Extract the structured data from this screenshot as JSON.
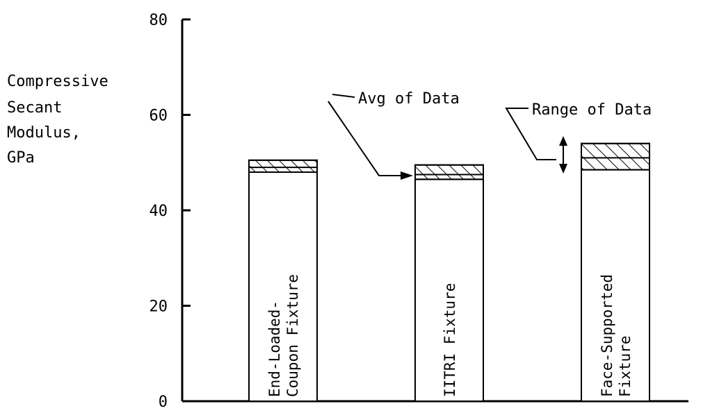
{
  "chart_data": {
    "type": "bar",
    "ylabel_lines": [
      "Compressive",
      "Secant",
      "Modulus,",
      "GPa"
    ],
    "ylim": [
      0,
      80
    ],
    "yticks": [
      0,
      20,
      40,
      60,
      80
    ],
    "categories": [
      {
        "label_lines": [
          "End-Loaded-",
          "Coupon Fixture"
        ],
        "avg": 49,
        "range": [
          48,
          50.5
        ]
      },
      {
        "label_lines": [
          "IITRI Fixture"
        ],
        "avg": 47.5,
        "range": [
          46.5,
          49.5
        ]
      },
      {
        "label_lines": [
          "Face-Supported",
          "Fixture"
        ],
        "avg": 51,
        "range": [
          48.5,
          54
        ]
      }
    ],
    "annotations": {
      "avg": "Avg of Data",
      "range": "Range of Data"
    },
    "grid": false
  }
}
